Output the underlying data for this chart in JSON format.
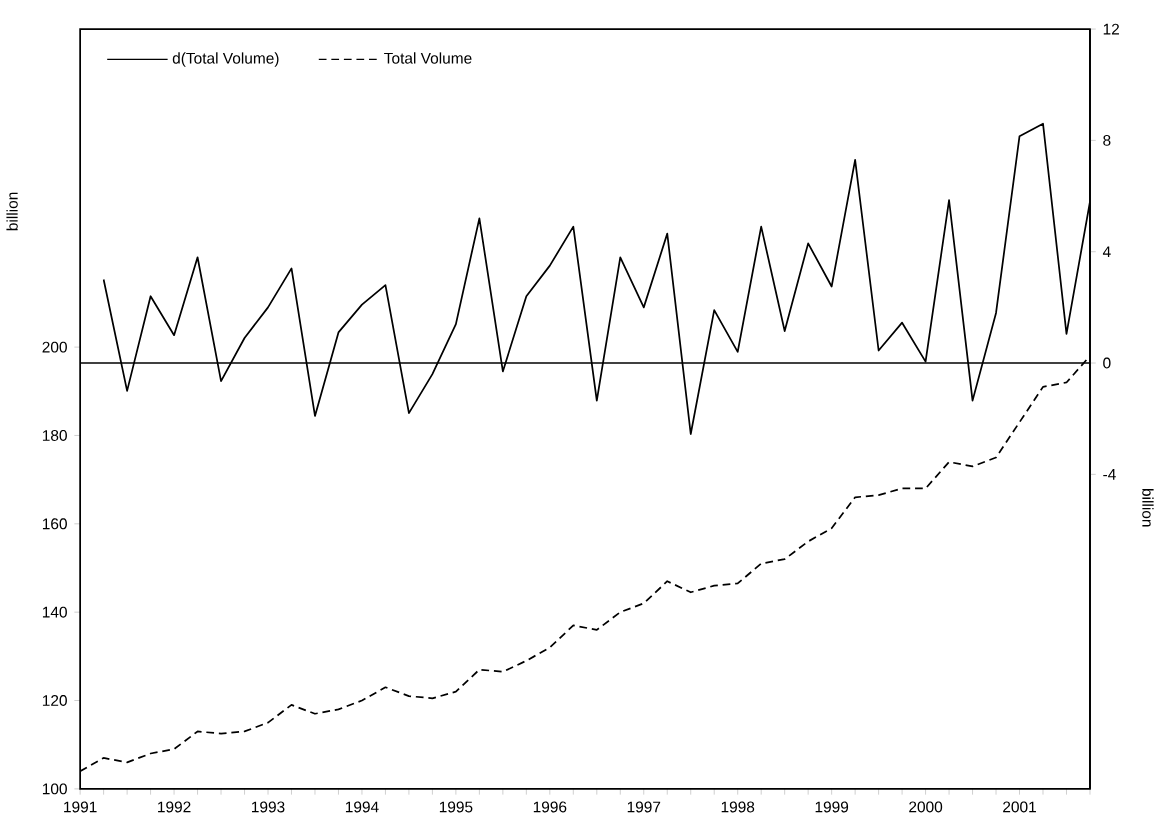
{
  "chart_data": {
    "type": "line",
    "ylabel": "billion",
    "y2label": "billion",
    "xlim": [
      1991,
      2001.75
    ],
    "xticks": [
      1991,
      {
        "value": 1991.25,
        "label": null
      },
      {
        "value": 1991.5,
        "label": null
      },
      {
        "value": 1991.75,
        "label": null
      },
      1992,
      {
        "value": 1992.25,
        "label": null
      },
      {
        "value": 1992.5,
        "label": null
      },
      {
        "value": 1992.75,
        "label": null
      },
      1993,
      {
        "value": 1993.25,
        "label": null
      },
      {
        "value": 1993.5,
        "label": null
      },
      {
        "value": 1993.75,
        "label": null
      },
      1994,
      {
        "value": 1994.25,
        "label": null
      },
      {
        "value": 1994.5,
        "label": null
      },
      {
        "value": 1994.75,
        "label": null
      },
      1995,
      {
        "value": 1995.25,
        "label": null
      },
      {
        "value": 1995.5,
        "label": null
      },
      {
        "value": 1995.75,
        "label": null
      },
      1996,
      {
        "value": 1996.25,
        "label": null
      },
      {
        "value": 1996.5,
        "label": null
      },
      {
        "value": 1996.75,
        "label": null
      },
      1997,
      {
        "value": 1997.25,
        "label": null
      },
      {
        "value": 1997.5,
        "label": null
      },
      {
        "value": 1997.75,
        "label": null
      },
      1998,
      {
        "value": 1998.25,
        "label": null
      },
      {
        "value": 1998.5,
        "label": null
      },
      {
        "value": 1998.75,
        "label": null
      },
      1999,
      {
        "value": 1999.25,
        "label": null
      },
      {
        "value": 1999.5,
        "label": null
      },
      {
        "value": 1999.75,
        "label": null
      },
      2000,
      {
        "value": 2000.25,
        "label": null
      },
      {
        "value": 2000.5,
        "label": null
      },
      {
        "value": 2000.75,
        "label": null
      },
      2001,
      {
        "value": 2001.25,
        "label": null
      },
      {
        "value": 2001.5,
        "label": null
      },
      {
        "value": 2001.75,
        "label": null
      }
    ],
    "ylim": [
      100,
      272
    ],
    "yticks": [
      100,
      120,
      140,
      160,
      180,
      200
    ],
    "y2lim": [
      -15.3,
      12
    ],
    "y2ticks": [
      -4,
      0,
      4,
      8,
      12
    ],
    "ref_lines": [
      {
        "axis": "y2",
        "value": 0,
        "color": "#000000"
      }
    ],
    "legend": "top left",
    "series": [
      {
        "name": "d(Total Volume)",
        "color": "#000000",
        "axis": "y2",
        "line_style": "solid",
        "x": [
          1991.25,
          1991.5,
          1991.75,
          1992,
          1992.25,
          1992.5,
          1992.75,
          1993,
          1993.25,
          1993.5,
          1993.75,
          1994,
          1994.25,
          1994.5,
          1994.75,
          1995,
          1995.25,
          1995.5,
          1995.75,
          1996,
          1996.25,
          1996.5,
          1996.75,
          1997,
          1997.25,
          1997.5,
          1997.75,
          1998,
          1998.25,
          1998.5,
          1998.75,
          1999,
          1999.25,
          1999.5,
          1999.75,
          2000,
          2000.25,
          2000.5,
          2000.75,
          2001,
          2001.25,
          2001.5,
          2001.75
        ],
        "values": [
          3.0,
          -1.0,
          2.4,
          1.0,
          3.8,
          -0.65,
          0.9,
          2.0,
          3.4,
          -1.9,
          1.1,
          2.1,
          2.8,
          -1.8,
          -0.4,
          1.4,
          5.2,
          -0.3,
          2.4,
          3.5,
          4.9,
          -1.35,
          3.8,
          2.0,
          4.65,
          -2.55,
          1.9,
          0.4,
          4.9,
          1.15,
          4.3,
          2.75,
          7.3,
          0.45,
          1.45,
          0.05,
          5.85,
          -1.35,
          1.8,
          8.15,
          8.6,
          1.05,
          5.8
        ]
      },
      {
        "name": "Total Volume",
        "color": "#000000",
        "line_style": "dashed",
        "x": [
          1991,
          1991.25,
          1991.5,
          1991.75,
          1992,
          1992.25,
          1992.5,
          1992.75,
          1993,
          1993.25,
          1993.5,
          1993.75,
          1994,
          1994.25,
          1994.5,
          1994.75,
          1995,
          1995.25,
          1995.5,
          1995.75,
          1996,
          1996.25,
          1996.5,
          1996.75,
          1997,
          1997.25,
          1997.5,
          1997.75,
          1998,
          1998.25,
          1998.5,
          1998.75,
          1999,
          1999.25,
          1999.5,
          1999.75,
          2000,
          2000.25,
          2000.5,
          2000.75,
          2001,
          2001.25,
          2001.5,
          2001.75
        ],
        "values": [
          104,
          107,
          106,
          108,
          109,
          113,
          112.5,
          113,
          115,
          119,
          117,
          118,
          120,
          123,
          121,
          120.5,
          122,
          127,
          126.5,
          129,
          132,
          137,
          136,
          140,
          142,
          147,
          144.5,
          146,
          146.5,
          151,
          152,
          156,
          159,
          166,
          166.5,
          168,
          168,
          174,
          173,
          175,
          183,
          191,
          192,
          198
        ]
      }
    ]
  }
}
